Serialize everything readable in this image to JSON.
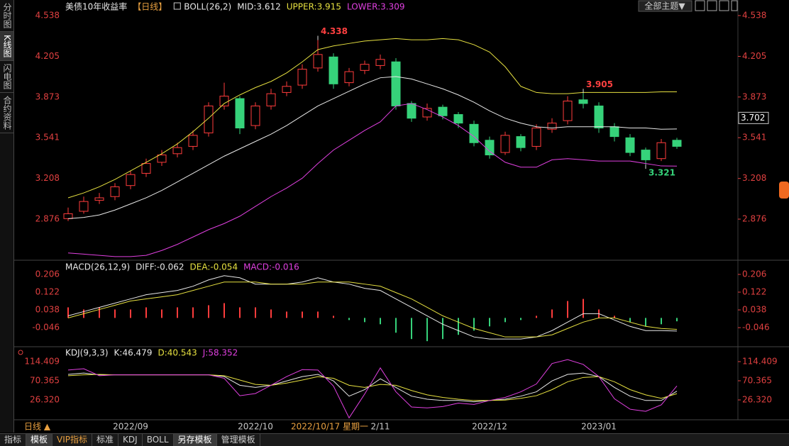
{
  "sidebar_tabs": [
    "分时图",
    "K线图",
    "闪电图",
    "合约资料"
  ],
  "toolbar": {
    "theme": "全部主题▼"
  },
  "bottom": {
    "period": "日线 ▲",
    "tabs": [
      "指标",
      "模板",
      "VIP指标",
      "标准",
      "KDJ",
      "BOLL",
      "另存模板",
      "管理模板"
    ]
  },
  "chart_data": [
    {
      "type": "candlestick",
      "title": "美债10年收益率",
      "subtitle": "【日线】",
      "indicator": "BOLL(26,2)",
      "categories": [
        null,
        null,
        null,
        null,
        "2022/09",
        null,
        null,
        null,
        null,
        null,
        null,
        null,
        "2022/10",
        null,
        null,
        null,
        null,
        null,
        null,
        null,
        "2/11",
        null,
        null,
        null,
        null,
        null,
        null,
        "2022/12",
        null,
        null,
        null,
        null,
        null,
        null,
        "2023/01",
        null,
        null,
        null,
        null,
        null
      ],
      "open": [
        2.88,
        2.94,
        3.03,
        3.06,
        3.15,
        3.25,
        3.34,
        3.41,
        3.47,
        3.58,
        3.8,
        3.86,
        3.64,
        3.8,
        3.91,
        3.97,
        4.11,
        4.2,
        3.99,
        4.09,
        4.13,
        4.16,
        3.82,
        3.71,
        3.79,
        3.73,
        3.65,
        3.52,
        3.42,
        3.55,
        3.47,
        3.61,
        3.68,
        3.85,
        3.8,
        3.63,
        3.54,
        3.44,
        3.37,
        3.52
      ],
      "high": [
        2.97,
        3.06,
        3.09,
        3.17,
        3.27,
        3.37,
        3.44,
        3.5,
        3.6,
        3.83,
        3.99,
        3.88,
        3.83,
        3.94,
        4.0,
        4.14,
        4.338,
        4.23,
        4.11,
        4.17,
        4.22,
        4.19,
        3.84,
        3.82,
        3.81,
        3.75,
        3.68,
        3.55,
        3.59,
        3.57,
        3.65,
        3.7,
        3.88,
        3.905,
        3.83,
        3.66,
        3.57,
        3.46,
        3.53,
        3.54
      ],
      "low": [
        2.86,
        2.92,
        3.0,
        3.03,
        3.12,
        3.22,
        3.31,
        3.38,
        3.44,
        3.55,
        3.77,
        3.57,
        3.61,
        3.77,
        3.88,
        3.94,
        4.08,
        3.94,
        3.96,
        4.06,
        4.1,
        3.77,
        3.67,
        3.68,
        3.69,
        3.62,
        3.47,
        3.37,
        3.4,
        3.43,
        3.44,
        3.58,
        3.65,
        3.78,
        3.58,
        3.51,
        3.39,
        3.321,
        3.35,
        3.45
      ],
      "close": [
        2.92,
        3.02,
        3.05,
        3.14,
        3.24,
        3.33,
        3.4,
        3.46,
        3.56,
        3.8,
        3.88,
        3.62,
        3.8,
        3.9,
        3.96,
        4.1,
        4.22,
        3.98,
        4.08,
        4.14,
        4.18,
        3.8,
        3.7,
        3.78,
        3.72,
        3.66,
        3.5,
        3.4,
        3.56,
        3.46,
        3.62,
        3.66,
        3.84,
        3.82,
        3.62,
        3.55,
        3.42,
        3.36,
        3.5,
        3.47
      ],
      "up_color": "#ff3c3c",
      "down_color": "#36d27a",
      "series": [
        {
          "name": "MID:3.612",
          "color": "#e8e8e8",
          "values": [
            2.88,
            2.89,
            2.91,
            2.95,
            3.0,
            3.05,
            3.11,
            3.18,
            3.25,
            3.32,
            3.39,
            3.45,
            3.51,
            3.57,
            3.64,
            3.72,
            3.8,
            3.86,
            3.92,
            3.98,
            4.03,
            4.04,
            4.02,
            3.98,
            3.94,
            3.89,
            3.83,
            3.76,
            3.7,
            3.66,
            3.63,
            3.62,
            3.63,
            3.63,
            3.63,
            3.63,
            3.62,
            3.62,
            3.61,
            3.612
          ]
        },
        {
          "name": "UPPER:3.915",
          "color": "#e6e040",
          "values": [
            3.05,
            3.09,
            3.14,
            3.2,
            3.27,
            3.34,
            3.41,
            3.49,
            3.59,
            3.7,
            3.82,
            3.89,
            3.95,
            4.0,
            4.07,
            4.16,
            4.26,
            4.29,
            4.31,
            4.33,
            4.34,
            4.35,
            4.34,
            4.34,
            4.35,
            4.34,
            4.3,
            4.24,
            4.12,
            3.96,
            3.91,
            3.9,
            3.9,
            3.91,
            3.91,
            3.91,
            3.91,
            3.91,
            3.915,
            3.915
          ]
        },
        {
          "name": "LOWER:3.309",
          "color": "#e040e0",
          "values": [
            2.6,
            2.59,
            2.58,
            2.57,
            2.57,
            2.58,
            2.62,
            2.67,
            2.73,
            2.79,
            2.84,
            2.9,
            2.98,
            3.06,
            3.13,
            3.21,
            3.33,
            3.44,
            3.52,
            3.6,
            3.67,
            3.8,
            3.82,
            3.77,
            3.71,
            3.64,
            3.55,
            3.43,
            3.34,
            3.3,
            3.3,
            3.36,
            3.37,
            3.36,
            3.35,
            3.35,
            3.35,
            3.33,
            3.31,
            3.309
          ]
        }
      ],
      "annotations": [
        {
          "x": 16,
          "y": 4.338,
          "color": "#ff4040"
        },
        {
          "x": 33,
          "y": 3.905,
          "color": "#ff4040"
        },
        {
          "x": 37,
          "y": 3.321,
          "color": "#36d27a"
        }
      ],
      "cursor_value": 3.702,
      "cursor_date": "2022/10/17 星期一",
      "ylim": [
        2.552,
        4.636
      ],
      "yticks": [
        4.538,
        4.205,
        3.873,
        3.541,
        3.208,
        2.876
      ]
    },
    {
      "type": "macd",
      "title": "MACD(26,12,9)",
      "series": [
        {
          "name": "DIFF:-0.062",
          "color": "#e8e8e8",
          "values": [
            0.01,
            0.03,
            0.05,
            0.07,
            0.09,
            0.11,
            0.12,
            0.13,
            0.15,
            0.18,
            0.2,
            0.19,
            0.16,
            0.16,
            0.16,
            0.17,
            0.19,
            0.17,
            0.16,
            0.14,
            0.13,
            0.09,
            0.05,
            0.01,
            -0.03,
            -0.06,
            -0.09,
            -0.1,
            -0.1,
            -0.1,
            -0.09,
            -0.06,
            -0.02,
            0.02,
            0.02,
            -0.01,
            -0.04,
            -0.06,
            -0.06,
            -0.062
          ]
        },
        {
          "name": "DEA:-0.054",
          "color": "#e6e040",
          "values": [
            0.0,
            0.02,
            0.04,
            0.06,
            0.08,
            0.09,
            0.1,
            0.11,
            0.13,
            0.15,
            0.17,
            0.17,
            0.17,
            0.16,
            0.16,
            0.16,
            0.17,
            0.17,
            0.17,
            0.16,
            0.15,
            0.12,
            0.09,
            0.05,
            0.01,
            -0.02,
            -0.05,
            -0.07,
            -0.09,
            -0.09,
            -0.09,
            -0.08,
            -0.05,
            -0.02,
            0.0,
            0.0,
            -0.02,
            -0.04,
            -0.05,
            -0.054
          ]
        },
        {
          "name": "MACD:-0.016",
          "color": "#e040e0",
          "up_color": "#ff3c3c",
          "down_color": "#36d27a",
          "values": [
            0.05,
            0.04,
            0.05,
            0.04,
            0.04,
            0.05,
            0.04,
            0.05,
            0.05,
            0.06,
            0.07,
            0.05,
            0.05,
            0.04,
            0.03,
            0.03,
            0.03,
            0.01,
            -0.01,
            -0.02,
            -0.03,
            -0.07,
            -0.1,
            -0.11,
            -0.1,
            -0.08,
            -0.06,
            -0.04,
            -0.02,
            -0.01,
            0.01,
            0.04,
            0.08,
            0.09,
            0.04,
            0.01,
            -0.02,
            -0.04,
            -0.03,
            -0.016
          ]
        }
      ],
      "ylim": [
        -0.133,
        0.263
      ],
      "yticks": [
        0.206,
        0.122,
        0.038,
        -0.046
      ]
    },
    {
      "type": "line",
      "title": "KDJ(9,3,3)",
      "series": [
        {
          "name": "K:46.479",
          "color": "#e8e8e8",
          "values": [
            85,
            88,
            84,
            84,
            84,
            84,
            84,
            84,
            84,
            84,
            80,
            60,
            55,
            60,
            70,
            80,
            85,
            70,
            35,
            50,
            75,
            55,
            35,
            28,
            25,
            25,
            22,
            25,
            28,
            35,
            45,
            70,
            85,
            88,
            80,
            55,
            35,
            25,
            25,
            46.479
          ]
        },
        {
          "name": "D:40.543",
          "color": "#e6e040",
          "values": [
            82,
            84,
            85,
            84,
            84,
            84,
            84,
            84,
            84,
            84,
            82,
            72,
            62,
            60,
            65,
            72,
            80,
            76,
            60,
            55,
            62,
            60,
            48,
            38,
            32,
            28,
            25,
            25,
            26,
            30,
            36,
            50,
            68,
            78,
            80,
            68,
            50,
            38,
            30,
            40.543
          ]
        },
        {
          "name": "J:58.352",
          "color": "#e040e0",
          "values": [
            95,
            98,
            82,
            84,
            84,
            84,
            84,
            84,
            84,
            84,
            76,
            36,
            41,
            60,
            80,
            96,
            95,
            58,
            -15,
            40,
            100,
            45,
            10,
            8,
            11,
            19,
            16,
            25,
            32,
            45,
            63,
            110,
            119,
            108,
            80,
            29,
            5,
            0,
            15,
            58.352
          ]
        }
      ],
      "ylim": [
        -19.35,
        147.03
      ],
      "yticks": [
        114.409,
        70.365,
        {
          "value": 26.32,
          "label": "26.320"
        }
      ]
    }
  ]
}
